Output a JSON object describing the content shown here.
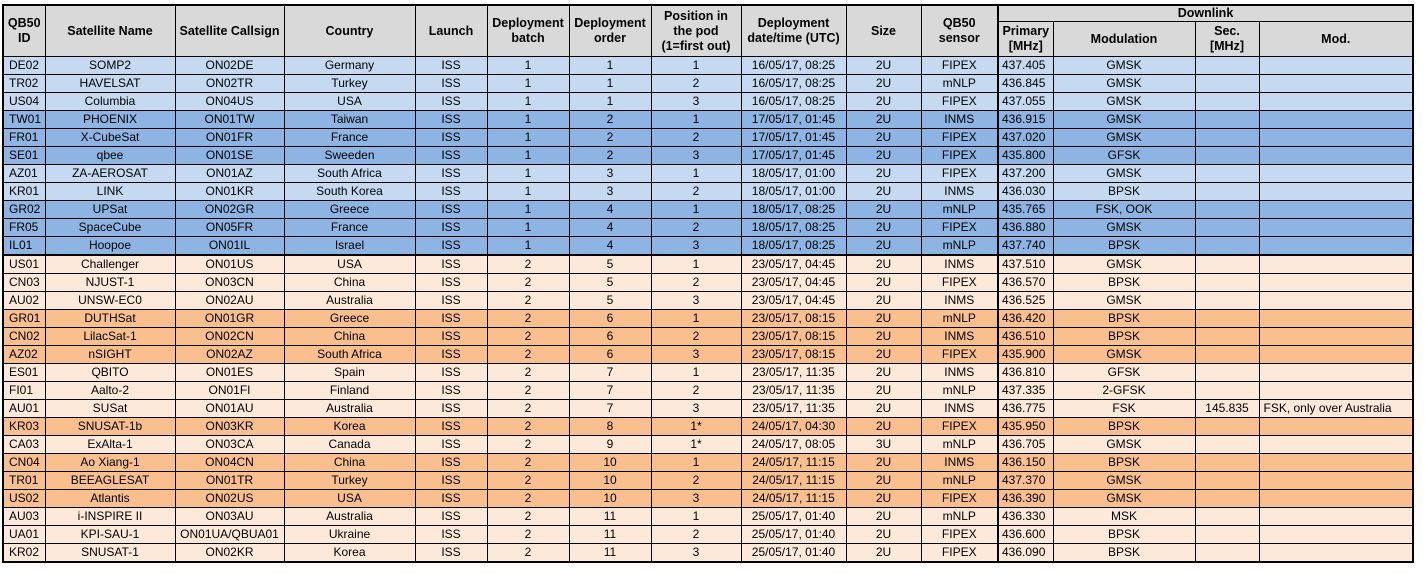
{
  "header": {
    "id": "QB50 ID",
    "name": "Satellite Name",
    "callsign": "Satellite Callsign",
    "country": "Country",
    "launch": "Launch",
    "batch": "Deployment batch",
    "order": "Deployment order",
    "position": "Position in the pod (1=first out)",
    "datetime": "Deployment date/time (UTC)",
    "size": "Size",
    "sensor": "QB50 sensor",
    "downlink": "Downlink",
    "primary": "Primary [MHz]",
    "modulation": "Modulation",
    "sec": "Sec. [MHz]",
    "mod": "Mod."
  },
  "colors": {
    "batch1_light": "#c5d9f1",
    "batch1_dark": "#8db4e2",
    "batch2_light": "#fde9d9",
    "batch2_dark": "#fabf8f",
    "header": "#d9d9d9"
  },
  "rows": [
    {
      "id": "DE02",
      "name": "SOMP2",
      "callsign": "ON02DE",
      "country": "Germany",
      "launch": "ISS",
      "batch": "1",
      "order": "1",
      "position": "1",
      "datetime": "16/05/17, 08:25",
      "size": "2U",
      "sensor": "FIPEX",
      "primary": "437.405",
      "modulation": "GMSK",
      "sec": "",
      "mod": "",
      "shade": "batch1-light"
    },
    {
      "id": "TR02",
      "name": "HAVELSAT",
      "callsign": "ON02TR",
      "country": "Turkey",
      "launch": "ISS",
      "batch": "1",
      "order": "1",
      "position": "2",
      "datetime": "16/05/17, 08:25",
      "size": "2U",
      "sensor": "mNLP",
      "primary": "436.845",
      "modulation": "GMSK",
      "sec": "",
      "mod": "",
      "shade": "batch1-light"
    },
    {
      "id": "US04",
      "name": "Columbia",
      "callsign": "ON04US",
      "country": "USA",
      "launch": "ISS",
      "batch": "1",
      "order": "1",
      "position": "3",
      "datetime": "16/05/17, 08:25",
      "size": "2U",
      "sensor": "FIPEX",
      "primary": "437.055",
      "modulation": "GMSK",
      "sec": "",
      "mod": "",
      "shade": "batch1-light"
    },
    {
      "id": "TW01",
      "name": "PHOENIX",
      "callsign": "ON01TW",
      "country": "Taiwan",
      "launch": "ISS",
      "batch": "1",
      "order": "2",
      "position": "1",
      "datetime": "17/05/17, 01:45",
      "size": "2U",
      "sensor": "INMS",
      "primary": "436.915",
      "modulation": "GMSK",
      "sec": "",
      "mod": "",
      "shade": "batch1-dark"
    },
    {
      "id": "FR01",
      "name": "X-CubeSat",
      "callsign": "ON01FR",
      "country": "France",
      "launch": "ISS",
      "batch": "1",
      "order": "2",
      "position": "2",
      "datetime": "17/05/17, 01:45",
      "size": "2U",
      "sensor": "FIPEX",
      "primary": "437.020",
      "modulation": "GMSK",
      "sec": "",
      "mod": "",
      "shade": "batch1-dark"
    },
    {
      "id": "SE01",
      "name": "qbee",
      "callsign": "ON01SE",
      "country": "Sweeden",
      "launch": "ISS",
      "batch": "1",
      "order": "2",
      "position": "3",
      "datetime": "17/05/17, 01:45",
      "size": "2U",
      "sensor": "FIPEX",
      "primary": "435.800",
      "modulation": "GFSK",
      "sec": "",
      "mod": "",
      "shade": "batch1-dark"
    },
    {
      "id": "AZ01",
      "name": "ZA-AEROSAT",
      "callsign": "ON01AZ",
      "country": "South Africa",
      "launch": "ISS",
      "batch": "1",
      "order": "3",
      "position": "1",
      "datetime": "18/05/17, 01:00",
      "size": "2U",
      "sensor": "FIPEX",
      "primary": "437.200",
      "modulation": "GMSK",
      "sec": "",
      "mod": "",
      "shade": "batch1-light"
    },
    {
      "id": "KR01",
      "name": "LINK",
      "callsign": "ON01KR",
      "country": "South Korea",
      "launch": "ISS",
      "batch": "1",
      "order": "3",
      "position": "2",
      "datetime": "18/05/17, 01:00",
      "size": "2U",
      "sensor": "INMS",
      "primary": "436.030",
      "modulation": "BPSK",
      "sec": "",
      "mod": "",
      "shade": "batch1-light"
    },
    {
      "id": "GR02",
      "name": "UPSat",
      "callsign": "ON02GR",
      "country": "Greece",
      "launch": "ISS",
      "batch": "1",
      "order": "4",
      "position": "1",
      "datetime": "18/05/17, 08:25",
      "size": "2U",
      "sensor": "mNLP",
      "primary": "435.765",
      "modulation": "FSK, OOK",
      "sec": "",
      "mod": "",
      "shade": "batch1-dark"
    },
    {
      "id": "FR05",
      "name": "SpaceCube",
      "callsign": "ON05FR",
      "country": "France",
      "launch": "ISS",
      "batch": "1",
      "order": "4",
      "position": "2",
      "datetime": "18/05/17, 08:25",
      "size": "2U",
      "sensor": "FIPEX",
      "primary": "436.880",
      "modulation": "GMSK",
      "sec": "",
      "mod": "",
      "shade": "batch1-dark"
    },
    {
      "id": "IL01",
      "name": "Hoopoe",
      "callsign": "ON01IL",
      "country": "Israel",
      "launch": "ISS",
      "batch": "1",
      "order": "4",
      "position": "3",
      "datetime": "18/05/17, 08:25",
      "size": "2U",
      "sensor": "mNLP",
      "primary": "437.740",
      "modulation": "BPSK",
      "sec": "",
      "mod": "",
      "shade": "batch1-dark"
    },
    {
      "id": "US01",
      "name": "Challenger",
      "callsign": "ON01US",
      "country": "USA",
      "launch": "ISS",
      "batch": "2",
      "order": "5",
      "position": "1",
      "datetime": "23/05/17, 04:45",
      "size": "2U",
      "sensor": "INMS",
      "primary": "437.510",
      "modulation": "GMSK",
      "sec": "",
      "mod": "",
      "shade": "batch2-light"
    },
    {
      "id": "CN03",
      "name": "NJUST-1",
      "callsign": "ON03CN",
      "country": "China",
      "launch": "ISS",
      "batch": "2",
      "order": "5",
      "position": "2",
      "datetime": "23/05/17, 04:45",
      "size": "2U",
      "sensor": "FIPEX",
      "primary": "436.570",
      "modulation": "BPSK",
      "sec": "",
      "mod": "",
      "shade": "batch2-light"
    },
    {
      "id": "AU02",
      "name": "UNSW-EC0",
      "callsign": "ON02AU",
      "country": "Australia",
      "launch": "ISS",
      "batch": "2",
      "order": "5",
      "position": "3",
      "datetime": "23/05/17, 04:45",
      "size": "2U",
      "sensor": "INMS",
      "primary": "436.525",
      "modulation": "GMSK",
      "sec": "",
      "mod": "",
      "shade": "batch2-light"
    },
    {
      "id": "GR01",
      "name": "DUTHSat",
      "callsign": "ON01GR",
      "country": "Greece",
      "launch": "ISS",
      "batch": "2",
      "order": "6",
      "position": "1",
      "datetime": "23/05/17, 08:15",
      "size": "2U",
      "sensor": "mNLP",
      "primary": "436.420",
      "modulation": "BPSK",
      "sec": "",
      "mod": "",
      "shade": "batch2-dark"
    },
    {
      "id": "CN02",
      "name": "LilacSat-1",
      "callsign": "ON02CN",
      "country": "China",
      "launch": "ISS",
      "batch": "2",
      "order": "6",
      "position": "2",
      "datetime": "23/05/17, 08:15",
      "size": "2U",
      "sensor": "INMS",
      "primary": "436.510",
      "modulation": "BPSK",
      "sec": "",
      "mod": "",
      "shade": "batch2-dark"
    },
    {
      "id": "AZ02",
      "name": "nSIGHT",
      "callsign": "ON02AZ",
      "country": "South Africa",
      "launch": "ISS",
      "batch": "2",
      "order": "6",
      "position": "3",
      "datetime": "23/05/17, 08:15",
      "size": "2U",
      "sensor": "FIPEX",
      "primary": "435.900",
      "modulation": "GMSK",
      "sec": "",
      "mod": "",
      "shade": "batch2-dark"
    },
    {
      "id": "ES01",
      "name": "QBITO",
      "callsign": "ON01ES",
      "country": "Spain",
      "launch": "ISS",
      "batch": "2",
      "order": "7",
      "position": "1",
      "datetime": "23/05/17, 11:35",
      "size": "2U",
      "sensor": "INMS",
      "primary": "436.810",
      "modulation": "GFSK",
      "sec": "",
      "mod": "",
      "shade": "batch2-light"
    },
    {
      "id": "FI01",
      "name": "Aalto-2",
      "callsign": "ON01FI",
      "country": "Finland",
      "launch": "ISS",
      "batch": "2",
      "order": "7",
      "position": "2",
      "datetime": "23/05/17, 11:35",
      "size": "2U",
      "sensor": "mNLP",
      "primary": "437.335",
      "modulation": "2-GFSK",
      "sec": "",
      "mod": "",
      "shade": "batch2-light"
    },
    {
      "id": "AU01",
      "name": "SUSat",
      "callsign": "ON01AU",
      "country": "Australia",
      "launch": "ISS",
      "batch": "2",
      "order": "7",
      "position": "3",
      "datetime": "23/05/17, 11:35",
      "size": "2U",
      "sensor": "INMS",
      "primary": "436.775",
      "modulation": "FSK",
      "sec": "145.835",
      "mod": "FSK, only over Australia",
      "shade": "batch2-light"
    },
    {
      "id": "KR03",
      "name": "SNUSAT-1b",
      "callsign": "ON03KR",
      "country": "Korea",
      "launch": "ISS",
      "batch": "2",
      "order": "8",
      "position": "1*",
      "datetime": "24/05/17, 04:30",
      "size": "2U",
      "sensor": "FIPEX",
      "primary": "435.950",
      "modulation": "BPSK",
      "sec": "",
      "mod": "",
      "shade": "batch2-dark"
    },
    {
      "id": "CA03",
      "name": "ExAlta-1",
      "callsign": "ON03CA",
      "country": "Canada",
      "launch": "ISS",
      "batch": "2",
      "order": "9",
      "position": "1*",
      "datetime": "24/05/17, 08:05",
      "size": "3U",
      "sensor": "mNLP",
      "primary": "436.705",
      "modulation": "GMSK",
      "sec": "",
      "mod": "",
      "shade": "batch2-light"
    },
    {
      "id": "CN04",
      "name": "Ao Xiang-1",
      "callsign": "ON04CN",
      "country": "China",
      "launch": "ISS",
      "batch": "2",
      "order": "10",
      "position": "1",
      "datetime": "24/05/17, 11:15",
      "size": "2U",
      "sensor": "INMS",
      "primary": "436.150",
      "modulation": "BPSK",
      "sec": "",
      "mod": "",
      "shade": "batch2-dark"
    },
    {
      "id": "TR01",
      "name": "BEEAGLESAT",
      "callsign": "ON01TR",
      "country": "Turkey",
      "launch": "ISS",
      "batch": "2",
      "order": "10",
      "position": "2",
      "datetime": "24/05/17, 11:15",
      "size": "2U",
      "sensor": "mNLP",
      "primary": "437.370",
      "modulation": "GMSK",
      "sec": "",
      "mod": "",
      "shade": "batch2-dark"
    },
    {
      "id": "US02",
      "name": "Atlantis",
      "callsign": "ON02US",
      "country": "USA",
      "launch": "ISS",
      "batch": "2",
      "order": "10",
      "position": "3",
      "datetime": "24/05/17, 11:15",
      "size": "2U",
      "sensor": "FIPEX",
      "primary": "436.390",
      "modulation": "GMSK",
      "sec": "",
      "mod": "",
      "shade": "batch2-dark"
    },
    {
      "id": "AU03",
      "name": "i-INSPIRE II",
      "callsign": "ON03AU",
      "country": "Australia",
      "launch": "ISS",
      "batch": "2",
      "order": "11",
      "position": "1",
      "datetime": "25/05/17, 01:40",
      "size": "2U",
      "sensor": "mNLP",
      "primary": "436.330",
      "modulation": "MSK",
      "sec": "",
      "mod": "",
      "shade": "batch2-light"
    },
    {
      "id": "UA01",
      "name": "KPI-SAU-1",
      "callsign": "ON01UA/QBUA01",
      "country": "Ukraine",
      "launch": "ISS",
      "batch": "2",
      "order": "11",
      "position": "2",
      "datetime": "25/05/17, 01:40",
      "size": "2U",
      "sensor": "FIPEX",
      "primary": "436.600",
      "modulation": "BPSK",
      "sec": "",
      "mod": "",
      "shade": "batch2-light"
    },
    {
      "id": "KR02",
      "name": "SNUSAT-1",
      "callsign": "ON02KR",
      "country": "Korea",
      "launch": "ISS",
      "batch": "2",
      "order": "11",
      "position": "3",
      "datetime": "25/05/17, 01:40",
      "size": "2U",
      "sensor": "FIPEX",
      "primary": "436.090",
      "modulation": "BPSK",
      "sec": "",
      "mod": "",
      "shade": "batch2-light"
    }
  ]
}
